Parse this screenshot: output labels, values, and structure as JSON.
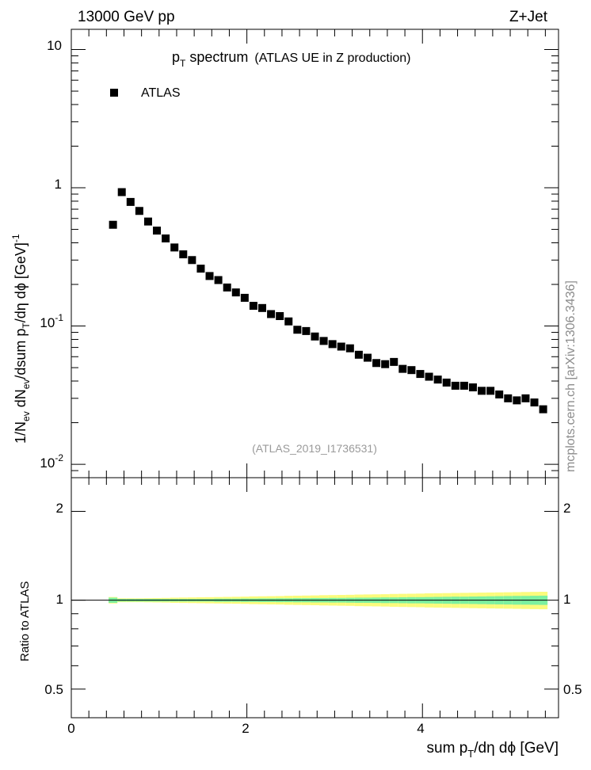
{
  "header": {
    "left": "13000 GeV pp",
    "right": "Z+Jet"
  },
  "title": {
    "main": "p",
    "main_sub": "T",
    "main_rest": " spectrum",
    "detail": "(ATLAS UE in Z production)"
  },
  "legend": {
    "label": "ATLAS"
  },
  "watermark": "(ATLAS_2019_I1736531)",
  "side_credit": "mcplots.cern.ch [arXiv:1306.3436]",
  "axes": {
    "main_ylabel": {
      "p1": "1/N",
      "s1": "ev",
      "p2": " dN",
      "s2": "ev",
      "p3": "/dsum p",
      "s3": "T",
      "p4": "/dη dϕ  [GeV]",
      "sup": "-1"
    },
    "ratio_ylabel": "Ratio to ATLAS",
    "xlabel": {
      "p1": "sum p",
      "s1": "T",
      "p2": "/dη dϕ [GeV]"
    }
  },
  "main_ticks": [
    {
      "base": "10",
      "exp": "-2"
    },
    {
      "base": "10",
      "exp": "-1"
    },
    {
      "base": "1",
      "exp": ""
    },
    {
      "base": "10",
      "exp": ""
    }
  ],
  "ratio_ticks": [
    "0.5",
    "1",
    "2"
  ],
  "x_ticks": [
    "0",
    "2",
    "4"
  ],
  "colors": {
    "marker": "#000000",
    "band_inner": "#7cf0a0",
    "band_outer": "#fbfb7c"
  },
  "chart_data": {
    "type": "scatter",
    "title": "pT spectrum (ATLAS UE in Z production)",
    "xlabel": "sum pT/dη dϕ [GeV]",
    "ylabel": "1/Nev dNev/dsum pT/dη dϕ [GeV]^-1",
    "x_range": [
      0,
      5.55
    ],
    "y_scale": "log",
    "y_range": [
      0.008,
      14
    ],
    "ratio_range": [
      0.4,
      2.6
    ],
    "ratio_scale": "log",
    "series": [
      {
        "name": "ATLAS",
        "x": [
          0.475,
          0.575,
          0.675,
          0.775,
          0.875,
          0.975,
          1.075,
          1.175,
          1.275,
          1.375,
          1.475,
          1.575,
          1.675,
          1.775,
          1.875,
          1.975,
          2.075,
          2.175,
          2.275,
          2.375,
          2.475,
          2.575,
          2.675,
          2.775,
          2.875,
          2.975,
          3.075,
          3.175,
          3.275,
          3.375,
          3.475,
          3.575,
          3.675,
          3.775,
          3.875,
          3.975,
          4.075,
          4.175,
          4.275,
          4.375,
          4.475,
          4.575,
          4.675,
          4.775,
          4.875,
          4.975,
          5.075,
          5.175,
          5.275,
          5.375
        ],
        "y": [
          0.54,
          0.93,
          0.79,
          0.68,
          0.57,
          0.49,
          0.43,
          0.37,
          0.33,
          0.3,
          0.26,
          0.23,
          0.215,
          0.19,
          0.175,
          0.16,
          0.14,
          0.135,
          0.122,
          0.118,
          0.108,
          0.094,
          0.092,
          0.084,
          0.078,
          0.074,
          0.071,
          0.069,
          0.062,
          0.059,
          0.054,
          0.053,
          0.055,
          0.049,
          0.048,
          0.045,
          0.043,
          0.041,
          0.039,
          0.037,
          0.037,
          0.036,
          0.034,
          0.034,
          0.032,
          0.03,
          0.029,
          0.03,
          0.028,
          0.025
        ],
        "ratio_inner": [
          0.02,
          0.01,
          0.01,
          0.01,
          0.01,
          0.01,
          0.01,
          0.01,
          0.01,
          0.01,
          0.01,
          0.01,
          0.012,
          0.012,
          0.012,
          0.013,
          0.013,
          0.014,
          0.014,
          0.015,
          0.015,
          0.016,
          0.016,
          0.017,
          0.017,
          0.018,
          0.018,
          0.019,
          0.02,
          0.02,
          0.021,
          0.022,
          0.022,
          0.023,
          0.024,
          0.024,
          0.025,
          0.026,
          0.027,
          0.028,
          0.028,
          0.029,
          0.03,
          0.031,
          0.032,
          0.033,
          0.034,
          0.034,
          0.035,
          0.036
        ],
        "ratio_outer": [
          0.025,
          0.015,
          0.015,
          0.015,
          0.016,
          0.017,
          0.018,
          0.02,
          0.021,
          0.022,
          0.023,
          0.024,
          0.025,
          0.026,
          0.027,
          0.028,
          0.03,
          0.031,
          0.032,
          0.033,
          0.035,
          0.036,
          0.037,
          0.038,
          0.04,
          0.041,
          0.042,
          0.043,
          0.045,
          0.046,
          0.047,
          0.048,
          0.05,
          0.051,
          0.052,
          0.053,
          0.055,
          0.056,
          0.057,
          0.058,
          0.059,
          0.06,
          0.061,
          0.062,
          0.063,
          0.064,
          0.065,
          0.066,
          0.067,
          0.068
        ]
      }
    ],
    "legend_position": "top-left"
  }
}
